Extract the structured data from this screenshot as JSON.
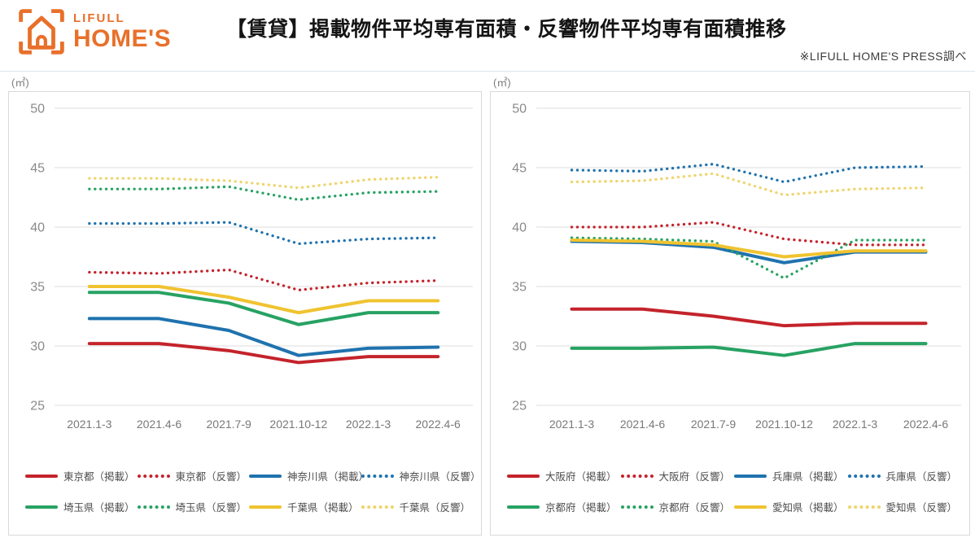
{
  "header": {
    "brand_top": "LIFULL",
    "brand_bottom": "HOME'S",
    "brand_color": "#E8702A",
    "title": "【賃貸】掲載物件平均専有面積・反響物件平均専有面積推移",
    "source_note": "※LIFULL HOME'S PRESS調べ"
  },
  "palette": {
    "red": "#C4232B",
    "blue": "#1F72AE",
    "green": "#27A263",
    "yellow": "#F0C330",
    "yellow_pale": "#EFD469",
    "grid": "#dcdcdc",
    "ytick_text": "#8a8a8a",
    "xtick_text": "#787878"
  },
  "chart_data": [
    {
      "type": "line",
      "unit_label": "(㎡)",
      "categories": [
        "2021.1-3",
        "2021.4-6",
        "2021.7-9",
        "2021.10-12",
        "2022.1-3",
        "2022.4-6"
      ],
      "ylim": [
        25,
        50
      ],
      "yticks": [
        25,
        30,
        35,
        40,
        45,
        50
      ],
      "grid": true,
      "legend_position": "bottom",
      "series": [
        {
          "name": "東京都（掲載）",
          "style": "solid",
          "color": "#C4232B",
          "values": [
            30.2,
            30.2,
            29.6,
            28.6,
            29.1,
            29.1
          ]
        },
        {
          "name": "東京都（反響）",
          "style": "dotted",
          "color": "#C4232B",
          "values": [
            36.2,
            36.1,
            36.4,
            34.7,
            35.3,
            35.5
          ]
        },
        {
          "name": "神奈川県（掲載）",
          "style": "solid",
          "color": "#1F72AE",
          "values": [
            32.3,
            32.3,
            31.3,
            29.2,
            29.8,
            29.9
          ]
        },
        {
          "name": "神奈川県（反響）",
          "style": "dotted",
          "color": "#1F72AE",
          "values": [
            40.3,
            40.3,
            40.4,
            38.6,
            39.0,
            39.1
          ]
        },
        {
          "name": "埼玉県（掲載）",
          "style": "solid",
          "color": "#27A263",
          "values": [
            34.5,
            34.5,
            33.6,
            31.8,
            32.8,
            32.8
          ]
        },
        {
          "name": "埼玉県（反響）",
          "style": "dotted",
          "color": "#27A263",
          "values": [
            43.2,
            43.2,
            43.4,
            42.3,
            42.9,
            43.0
          ]
        },
        {
          "name": "千葉県（掲載）",
          "style": "solid",
          "color": "#F0C330",
          "values": [
            35.0,
            35.0,
            34.1,
            32.8,
            33.8,
            33.8
          ]
        },
        {
          "name": "千葉県（反響）",
          "style": "dotted",
          "color": "#EFD469",
          "values": [
            44.1,
            44.1,
            43.9,
            43.3,
            44.0,
            44.2
          ]
        }
      ]
    },
    {
      "type": "line",
      "unit_label": "(㎡)",
      "categories": [
        "2021.1-3",
        "2021.4-6",
        "2021.7-9",
        "2021.10-12",
        "2022.1-3",
        "2022.4-6"
      ],
      "ylim": [
        25,
        50
      ],
      "yticks": [
        25,
        30,
        35,
        40,
        45,
        50
      ],
      "grid": true,
      "legend_position": "bottom",
      "series": [
        {
          "name": "大阪府（掲載）",
          "style": "solid",
          "color": "#C4232B",
          "values": [
            33.1,
            33.1,
            32.5,
            31.7,
            31.9,
            31.9
          ]
        },
        {
          "name": "大阪府（反響）",
          "style": "dotted",
          "color": "#C4232B",
          "values": [
            40.0,
            40.0,
            40.4,
            39.0,
            38.5,
            38.5
          ]
        },
        {
          "name": "兵庫県（掲載）",
          "style": "solid",
          "color": "#1F72AE",
          "values": [
            38.8,
            38.7,
            38.3,
            37.0,
            37.9,
            37.9
          ]
        },
        {
          "name": "兵庫県（反響）",
          "style": "dotted",
          "color": "#1F72AE",
          "values": [
            44.8,
            44.7,
            45.3,
            43.8,
            45.0,
            45.1
          ]
        },
        {
          "name": "京都府（掲載）",
          "style": "solid",
          "color": "#27A263",
          "values": [
            29.8,
            29.8,
            29.9,
            29.2,
            30.2,
            30.2
          ]
        },
        {
          "name": "京都府（反響）",
          "style": "dotted",
          "color": "#27A263",
          "values": [
            39.1,
            39.0,
            38.8,
            35.7,
            38.9,
            38.9
          ]
        },
        {
          "name": "愛知県（掲載）",
          "style": "solid",
          "color": "#F0C330",
          "values": [
            38.9,
            38.8,
            38.5,
            37.5,
            38.0,
            38.0
          ]
        },
        {
          "name": "愛知県（反響）",
          "style": "dotted",
          "color": "#EFD469",
          "values": [
            43.8,
            43.9,
            44.5,
            42.7,
            43.2,
            43.3
          ]
        }
      ]
    }
  ]
}
